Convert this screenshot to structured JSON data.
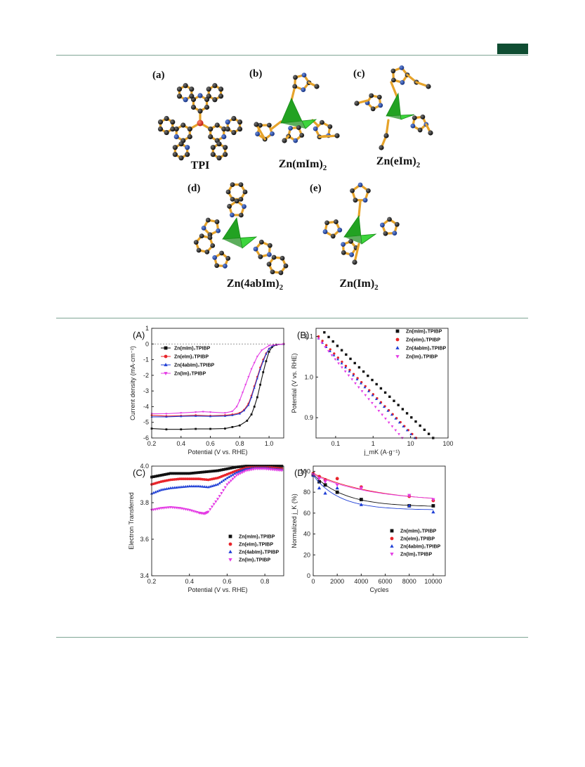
{
  "figure1": {
    "panels": [
      {
        "letter": "(a)",
        "name": "TPI",
        "sub": ""
      },
      {
        "letter": "(b)",
        "name": "Zn(mIm)",
        "sub": "2"
      },
      {
        "letter": "(c)",
        "name": "Zn(eIm)",
        "sub": "2"
      },
      {
        "letter": "(d)",
        "name": "Zn(4abIm)",
        "sub": "2"
      },
      {
        "letter": "(e)",
        "name": "Zn(Im)",
        "sub": "2"
      }
    ]
  },
  "colors": {
    "black": "#111111",
    "red": "#e8242a",
    "blue": "#1f3fd6",
    "magenta": "#e43be4",
    "green_header": "#0f4d32",
    "atom_c": "#1a1a1a",
    "atom_n": "#1e3a9a",
    "bond": "#e6a32a",
    "zn_tetra": "#2bd12b"
  },
  "chart_data": [
    {
      "id": "A",
      "panel_label": "(A)",
      "type": "line",
      "xlabel": "Potential (V vs. RHE)",
      "ylabel": "Current density (mA·cm⁻²)",
      "xlim": [
        0.2,
        1.1
      ],
      "ylim": [
        -6,
        1
      ],
      "xticks": [
        "0.2",
        "0.4",
        "0.6",
        "0.8",
        "1.0"
      ],
      "yticks": [
        "1",
        "0",
        "-1",
        "-2",
        "-3",
        "-4",
        "-5",
        "-6"
      ],
      "legend": [
        "Zn(mIm)₂TPIBP",
        "Zn(eIm)₂TPIBP",
        "Zn(4abIm)₂TPIBP",
        "Zn(Im)₂TPIBP"
      ],
      "series": [
        {
          "name": "Zn(mIm)₂TPIBP",
          "color": "#111111",
          "marker": "square",
          "x": [
            0.2,
            0.3,
            0.4,
            0.5,
            0.6,
            0.7,
            0.75,
            0.8,
            0.85,
            0.88,
            0.9,
            0.92,
            0.94,
            0.96,
            0.98,
            1.0,
            1.02,
            1.05,
            1.1
          ],
          "y": [
            -5.4,
            -5.45,
            -5.45,
            -5.42,
            -5.42,
            -5.4,
            -5.3,
            -5.2,
            -4.9,
            -4.5,
            -4.0,
            -3.4,
            -2.6,
            -1.8,
            -1.1,
            -0.5,
            -0.2,
            -0.05,
            0.0
          ]
        },
        {
          "name": "Zn(eIm)₂TPIBP",
          "color": "#e8242a",
          "marker": "circle",
          "x": [
            0.2,
            0.3,
            0.4,
            0.5,
            0.6,
            0.7,
            0.75,
            0.8,
            0.83,
            0.86,
            0.88,
            0.9,
            0.92,
            0.94,
            0.96,
            0.98,
            1.0,
            1.03,
            1.1
          ],
          "y": [
            -4.55,
            -4.6,
            -4.58,
            -4.55,
            -4.58,
            -4.55,
            -4.5,
            -4.4,
            -4.2,
            -3.8,
            -3.3,
            -2.7,
            -2.1,
            -1.5,
            -1.0,
            -0.6,
            -0.3,
            -0.08,
            0.0
          ]
        },
        {
          "name": "Zn(4abIm)₂TPIBP",
          "color": "#1f3fd6",
          "marker": "triangle",
          "x": [
            0.2,
            0.3,
            0.4,
            0.5,
            0.6,
            0.7,
            0.75,
            0.8,
            0.83,
            0.86,
            0.88,
            0.9,
            0.92,
            0.94,
            0.96,
            0.98,
            1.0,
            1.03,
            1.1
          ],
          "y": [
            -4.65,
            -4.65,
            -4.62,
            -4.6,
            -4.62,
            -4.6,
            -4.55,
            -4.45,
            -4.25,
            -3.9,
            -3.4,
            -2.8,
            -2.2,
            -1.6,
            -1.1,
            -0.65,
            -0.3,
            -0.08,
            0.0
          ]
        },
        {
          "name": "Zn(Im)₂TPIBP",
          "color": "#e43be4",
          "marker": "triangle-down",
          "x": [
            0.2,
            0.3,
            0.4,
            0.5,
            0.55,
            0.6,
            0.7,
            0.75,
            0.78,
            0.8,
            0.82,
            0.84,
            0.86,
            0.88,
            0.9,
            0.92,
            0.95,
            1.0,
            1.1
          ],
          "y": [
            -4.45,
            -4.45,
            -4.4,
            -4.35,
            -4.32,
            -4.35,
            -4.4,
            -4.3,
            -4.0,
            -3.6,
            -3.1,
            -2.6,
            -2.1,
            -1.6,
            -1.2,
            -0.8,
            -0.4,
            -0.1,
            0.0
          ]
        }
      ]
    },
    {
      "id": "B",
      "panel_label": "(B)",
      "type": "scatter",
      "xlabel": "j_mK (A·g⁻¹)",
      "ylabel": "Potential (V vs. RHE)",
      "xscale": "log",
      "xlim": [
        0.03,
        100
      ],
      "ylim": [
        0.85,
        1.12
      ],
      "xticks": [
        "0.1",
        "1",
        "10",
        "100"
      ],
      "yticks": [
        "0.9",
        "1.0",
        "1.1"
      ],
      "legend": [
        "Zn(mIm)₂TPIBP",
        "Zn(eIm)₂TPIBP",
        "Zn(4abIm)₂TPIBP",
        "Zn(Im)₂TPIBP"
      ],
      "series": [
        {
          "name": "Zn(mIm)₂TPIBP",
          "color": "#111111",
          "marker": "square",
          "x0": 0.05,
          "x1": 40,
          "y0": 1.11,
          "y1": 0.85
        },
        {
          "name": "Zn(eIm)₂TPIBP",
          "color": "#e8242a",
          "marker": "circle",
          "x0": 0.035,
          "x1": 14,
          "y0": 1.1,
          "y1": 0.85
        },
        {
          "name": "Zn(4abIm)₂TPIBP",
          "color": "#1f3fd6",
          "marker": "triangle",
          "x0": 0.035,
          "x1": 13,
          "y0": 1.095,
          "y1": 0.85
        },
        {
          "name": "Zn(Im)₂TPIBP",
          "color": "#e43be4",
          "marker": "triangle-down",
          "x0": 0.035,
          "x1": 6,
          "y0": 1.095,
          "y1": 0.85
        }
      ]
    },
    {
      "id": "C",
      "panel_label": "(C)",
      "type": "line",
      "xlabel": "Potential (V vs. RHE)",
      "ylabel": "Electron Transferred",
      "xlim": [
        0.2,
        0.9
      ],
      "ylim": [
        3.4,
        4.0
      ],
      "xticks": [
        "0.2",
        "0.4",
        "0.6",
        "0.8"
      ],
      "yticks": [
        "3.4",
        "3.6",
        "3.8",
        "4.0"
      ],
      "legend": [
        "Zn(mIm)₂TPIBP",
        "Zn(eIm)₂TPIBP",
        "Zn(4abIm)₂TPIBP",
        "Zn(Im)₂TPIBP"
      ],
      "series": [
        {
          "name": "Zn(mIm)₂TPIBP",
          "color": "#111111",
          "marker": "square",
          "x": [
            0.2,
            0.25,
            0.3,
            0.35,
            0.4,
            0.45,
            0.5,
            0.55,
            0.6,
            0.65,
            0.7,
            0.75,
            0.8,
            0.85,
            0.9
          ],
          "y": [
            3.94,
            3.95,
            3.96,
            3.96,
            3.96,
            3.965,
            3.97,
            3.975,
            3.985,
            3.995,
            4.0,
            4.0,
            4.0,
            4.0,
            4.0
          ]
        },
        {
          "name": "Zn(eIm)₂TPIBP",
          "color": "#e8242a",
          "marker": "circle",
          "x": [
            0.2,
            0.25,
            0.3,
            0.35,
            0.4,
            0.45,
            0.5,
            0.55,
            0.6,
            0.65,
            0.7,
            0.75,
            0.8,
            0.85,
            0.9
          ],
          "y": [
            3.9,
            3.915,
            3.925,
            3.93,
            3.93,
            3.93,
            3.925,
            3.935,
            3.955,
            3.975,
            3.99,
            3.995,
            3.995,
            3.99,
            3.985
          ]
        },
        {
          "name": "Zn(4abIm)₂TPIBP",
          "color": "#1f3fd6",
          "marker": "triangle",
          "x": [
            0.2,
            0.25,
            0.3,
            0.35,
            0.4,
            0.45,
            0.5,
            0.55,
            0.6,
            0.65,
            0.7,
            0.75,
            0.8,
            0.85,
            0.9
          ],
          "y": [
            3.85,
            3.87,
            3.88,
            3.885,
            3.89,
            3.89,
            3.885,
            3.9,
            3.935,
            3.965,
            3.985,
            3.99,
            3.99,
            3.985,
            3.98
          ]
        },
        {
          "name": "Zn(Im)₂TPIBP",
          "color": "#e43be4",
          "marker": "triangle-down",
          "x": [
            0.2,
            0.25,
            0.3,
            0.35,
            0.4,
            0.45,
            0.48,
            0.5,
            0.55,
            0.6,
            0.65,
            0.7,
            0.75,
            0.8,
            0.85,
            0.9
          ],
          "y": [
            3.76,
            3.77,
            3.775,
            3.77,
            3.76,
            3.745,
            3.74,
            3.75,
            3.82,
            3.9,
            3.95,
            3.975,
            3.985,
            3.985,
            3.98,
            3.975
          ]
        }
      ]
    },
    {
      "id": "D",
      "panel_label": "(D)",
      "type": "scatter",
      "xlabel": "Cycles",
      "ylabel": "Normalized j_K (%)",
      "xlim": [
        0,
        11000
      ],
      "ylim": [
        0,
        105
      ],
      "xticks": [
        "0",
        "2000",
        "4000",
        "6000",
        "8000",
        "10000"
      ],
      "yticks": [
        "0",
        "20",
        "40",
        "60",
        "80",
        "100"
      ],
      "legend": [
        "Zn(mIm)₂TPIBP",
        "Zn(eIm)₂TPIBP",
        "Zn(4abIm)₂TPIBP",
        "Zn(Im)₂TPIBP"
      ],
      "series": [
        {
          "name": "Zn(mIm)₂TPIBP",
          "color": "#111111",
          "marker": "square",
          "x": [
            0,
            500,
            1000,
            2000,
            4000,
            8000,
            10000
          ],
          "y": [
            97,
            90,
            87,
            80,
            73,
            67,
            67
          ]
        },
        {
          "name": "Zn(eIm)₂TPIBP",
          "color": "#e8242a",
          "marker": "circle",
          "x": [
            0,
            500,
            1000,
            2000,
            4000,
            8000,
            10000
          ],
          "y": [
            98,
            95,
            92,
            93,
            85,
            76,
            72
          ]
        },
        {
          "name": "Zn(4abIm)₂TPIBP",
          "color": "#1f3fd6",
          "marker": "triangle",
          "x": [
            0,
            500,
            1000,
            2000,
            4000,
            8000,
            10000
          ],
          "y": [
            96,
            84,
            79,
            84,
            68,
            67,
            61
          ]
        },
        {
          "name": "Zn(Im)₂TPIBP",
          "color": "#e43be4",
          "marker": "triangle-down",
          "x": [
            0,
            500,
            1000,
            2000,
            4000,
            8000,
            10000
          ],
          "y": [
            97,
            93,
            90,
            87,
            84,
            77,
            73
          ]
        }
      ]
    }
  ]
}
